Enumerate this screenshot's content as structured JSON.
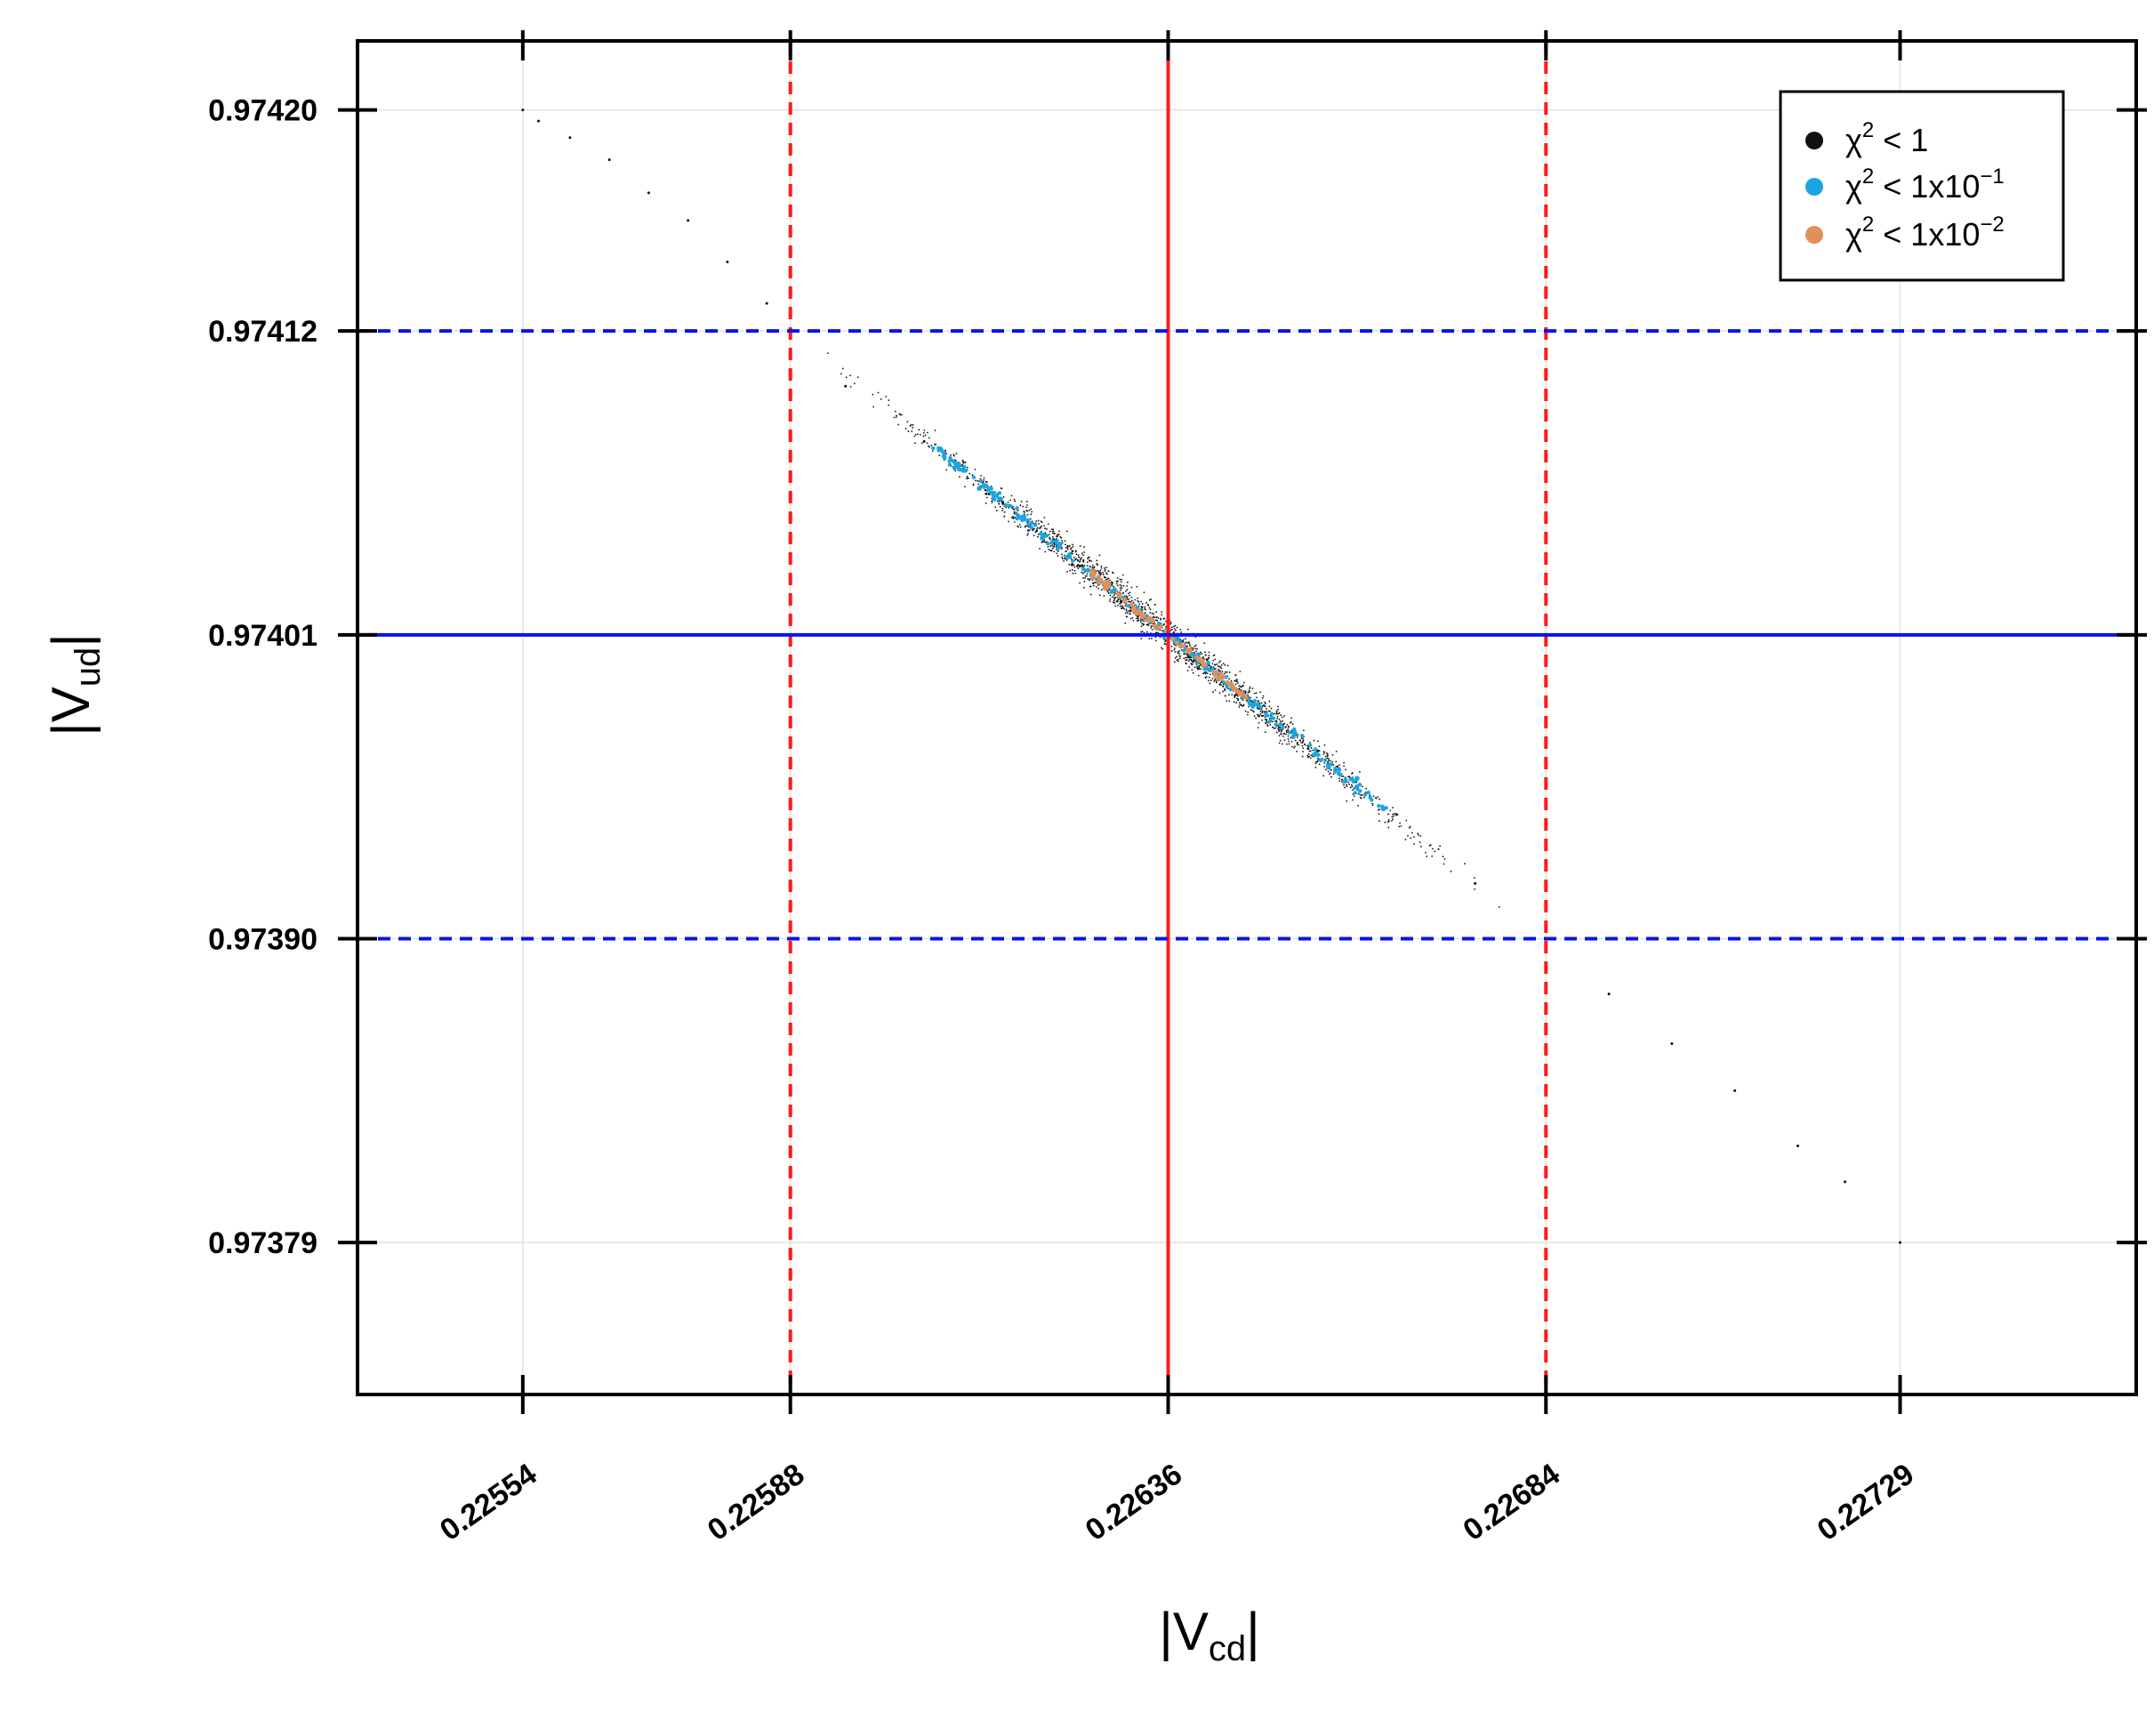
{
  "chart_data": {
    "type": "scatter",
    "xlabel": {
      "main": "|V",
      "sub": "cd",
      "end": "|"
    },
    "ylabel": {
      "main": "|V",
      "sub": "ud",
      "end": "|"
    },
    "xlim": [
      0.22533,
      0.22759
    ],
    "ylim": [
      0.973735,
      0.974225
    ],
    "x_ticks": [
      0.22554,
      0.22588,
      0.22636,
      0.22684,
      0.22729
    ],
    "x_tick_labels": [
      "0.22554",
      "0.22588",
      "0.22636",
      "0.22684",
      "0.22729"
    ],
    "y_ticks": [
      0.9742,
      0.97412,
      0.97401,
      0.9739,
      0.97379
    ],
    "y_tick_labels": [
      "0.97420",
      "0.97412",
      "0.97401",
      "0.97390",
      "0.97379"
    ],
    "grid": true,
    "legend_position": "top-right",
    "reference_lines": [
      {
        "orientation": "vertical",
        "value": 0.22636,
        "style": "solid",
        "color": "#ff1a1a"
      },
      {
        "orientation": "vertical",
        "value": 0.22588,
        "style": "dashed",
        "color": "#ff1a1a"
      },
      {
        "orientation": "vertical",
        "value": 0.22684,
        "style": "dashed",
        "color": "#ff1a1a"
      },
      {
        "orientation": "horizontal",
        "value": 0.97401,
        "style": "solid",
        "color": "#0a14e6"
      },
      {
        "orientation": "horizontal",
        "value": 0.97412,
        "style": "dashed",
        "color": "#0a14e6"
      },
      {
        "orientation": "horizontal",
        "value": 0.9739,
        "style": "dashed",
        "color": "#0a14e6"
      }
    ],
    "series": [
      {
        "name": "χ² < 1",
        "legend": {
          "base": "χ",
          "sup": "2",
          "rest": " < 1"
        },
        "color": "#111111",
        "points": [
          [
            0.22554,
            0.9742
          ],
          [
            0.22556,
            0.974196
          ],
          [
            0.2256,
            0.97419
          ],
          [
            0.22565,
            0.974182
          ],
          [
            0.2257,
            0.97417
          ],
          [
            0.22575,
            0.97416
          ],
          [
            0.2258,
            0.974145
          ],
          [
            0.22585,
            0.97413
          ],
          [
            0.22588,
            0.97412
          ],
          [
            0.22595,
            0.9741
          ],
          [
            0.22605,
            0.97408
          ],
          [
            0.22615,
            0.974058
          ],
          [
            0.22625,
            0.974035
          ],
          [
            0.2263,
            0.974022
          ],
          [
            0.22636,
            0.97401
          ],
          [
            0.22645,
            0.97399
          ],
          [
            0.22655,
            0.973968
          ],
          [
            0.22665,
            0.973945
          ],
          [
            0.22675,
            0.97392
          ],
          [
            0.22684,
            0.9739
          ],
          [
            0.22692,
            0.97388
          ],
          [
            0.227,
            0.973862
          ],
          [
            0.22708,
            0.973845
          ],
          [
            0.22716,
            0.973825
          ],
          [
            0.22722,
            0.973812
          ],
          [
            0.22729,
            0.97379
          ]
        ]
      },
      {
        "name": "χ² < 1x10⁻¹",
        "legend": {
          "base": "χ",
          "sup": "2",
          "rest": " < 1x10",
          "rest_sup": "−1"
        },
        "color": "#1aa6e0",
        "points": [
          [
            0.22612,
            0.974063
          ],
          [
            0.2262,
            0.974045
          ],
          [
            0.22628,
            0.974027
          ],
          [
            0.22636,
            0.97401
          ],
          [
            0.22644,
            0.973992
          ],
          [
            0.22652,
            0.973975
          ],
          [
            0.2266,
            0.973958
          ]
        ]
      },
      {
        "name": "χ² < 1x10⁻²",
        "legend": {
          "base": "χ",
          "sup": "2",
          "rest": " < 1x10",
          "rest_sup": "−2"
        },
        "color": "#e0905a",
        "points": [
          [
            0.22628,
            0.974027
          ],
          [
            0.22632,
            0.974018
          ],
          [
            0.22636,
            0.97401
          ],
          [
            0.2264,
            0.974001
          ],
          [
            0.22644,
            0.973992
          ]
        ]
      }
    ]
  }
}
